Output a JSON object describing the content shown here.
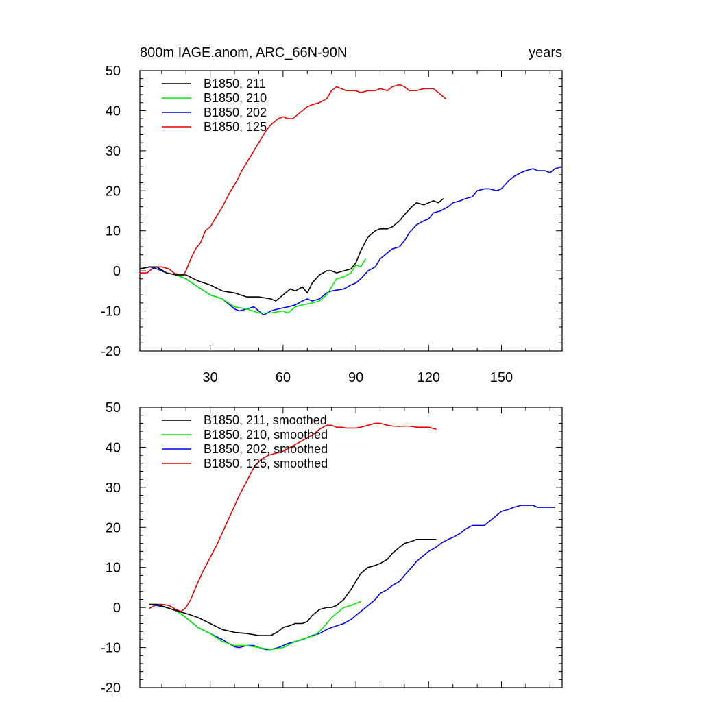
{
  "figure": {
    "title_left": "800m IAGE.anom, ARC_66N-90N",
    "title_right": "years"
  },
  "chart_data": [
    {
      "type": "line",
      "panel": "raw",
      "title": "800m IAGE.anom, ARC_66N-90N",
      "units_label": "years",
      "xlim": [
        1,
        175
      ],
      "ylim": [
        -20,
        50
      ],
      "x_ticks": [
        30,
        60,
        90,
        120,
        150
      ],
      "x_tick_labels": [
        "30",
        "60",
        "90",
        "120",
        "150"
      ],
      "y_ticks": [
        -20,
        -10,
        0,
        10,
        20,
        30,
        40,
        50
      ],
      "y_tick_labels": [
        "-20",
        "-10",
        "0",
        "10",
        "20",
        "30",
        "40",
        "50"
      ],
      "legend_position": "top-left",
      "series": [
        {
          "name": "B1850, 211",
          "color": "#000000",
          "x": [
            1,
            5,
            8,
            12,
            16,
            20,
            25,
            30,
            35,
            40,
            45,
            50,
            55,
            57,
            60,
            63,
            65,
            68,
            70,
            72,
            75,
            78,
            80,
            82,
            85,
            88,
            90,
            92,
            95,
            98,
            100,
            103,
            105,
            108,
            110,
            113,
            115,
            118,
            120,
            122,
            124,
            126
          ],
          "y": [
            0.5,
            1,
            1,
            -0.5,
            -1,
            -1,
            -2.5,
            -3.5,
            -5,
            -5.5,
            -6.5,
            -6.5,
            -7,
            -7.5,
            -6,
            -4.5,
            -5,
            -4,
            -5.5,
            -3,
            -1,
            0,
            0,
            -0.5,
            0,
            0.5,
            2,
            5,
            8.5,
            10,
            10.5,
            10.5,
            11,
            12.5,
            14,
            16,
            17,
            16.5,
            17,
            17.5,
            17,
            18
          ]
        },
        {
          "name": "B1850, 210",
          "color": "#00ee00",
          "x": [
            1,
            5,
            8,
            12,
            16,
            20,
            25,
            30,
            35,
            40,
            45,
            50,
            55,
            60,
            62,
            65,
            68,
            72,
            75,
            78,
            80,
            82,
            85,
            88,
            90,
            92,
            94
          ],
          "y": [
            0.5,
            1,
            1,
            -0.5,
            -1,
            -2,
            -4,
            -6,
            -7,
            -9,
            -9.5,
            -10.5,
            -10.5,
            -10,
            -10.5,
            -9,
            -8.5,
            -8,
            -7.5,
            -6,
            -4,
            -2,
            -1.5,
            -0.5,
            1.5,
            1,
            3
          ]
        },
        {
          "name": "B1850, 202",
          "color": "#0000ee",
          "x": [
            1,
            5,
            8,
            12,
            16,
            20,
            25,
            30,
            35,
            40,
            42,
            45,
            48,
            50,
            52,
            55,
            58,
            62,
            65,
            68,
            70,
            72,
            75,
            78,
            80,
            85,
            88,
            90,
            92,
            95,
            98,
            100,
            103,
            105,
            108,
            110,
            112,
            115,
            118,
            120,
            122,
            125,
            128,
            130,
            133,
            135,
            138,
            140,
            143,
            145,
            148,
            150,
            153,
            155,
            158,
            160,
            163,
            165,
            168,
            170,
            172,
            175
          ],
          "y": [
            0.5,
            1,
            0.5,
            -0.5,
            -1,
            -2,
            -4,
            -6,
            -7,
            -9.5,
            -10,
            -9.5,
            -9,
            -10,
            -11,
            -10,
            -9.5,
            -9,
            -8.5,
            -7.5,
            -7,
            -7.5,
            -7,
            -5.5,
            -5,
            -4.5,
            -3.5,
            -3,
            -2,
            0,
            1,
            3,
            4.5,
            5.5,
            6,
            7.5,
            9.5,
            11.5,
            12.5,
            13,
            14.5,
            15,
            16,
            17,
            17.5,
            18,
            18.5,
            20,
            20.5,
            20.5,
            20,
            20.5,
            22.5,
            23.5,
            24.5,
            25,
            25.5,
            25,
            25,
            24.5,
            25.5,
            26
          ]
        },
        {
          "name": "B1850, 125",
          "color": "#ee0000",
          "x": [
            1,
            4,
            6,
            8,
            10,
            13,
            15,
            17,
            19,
            20,
            22,
            24,
            26,
            28,
            30,
            32,
            35,
            38,
            41,
            43,
            45,
            47,
            49,
            51,
            53,
            55,
            57,
            58,
            60,
            62,
            64,
            66,
            68,
            70,
            72,
            75,
            78,
            80,
            82,
            84,
            86,
            88,
            90,
            92,
            95,
            98,
            100,
            103,
            105,
            108,
            110,
            112,
            115,
            118,
            120,
            122,
            124,
            127
          ],
          "y": [
            -0.5,
            -0.5,
            0.5,
            1,
            1,
            0.5,
            -0.5,
            -1,
            -1,
            0,
            3,
            5.5,
            7,
            10,
            11,
            13,
            16,
            19.5,
            22.5,
            25,
            27,
            29,
            31,
            33,
            35,
            36.5,
            37.5,
            38,
            38.5,
            38,
            38,
            39,
            40,
            41,
            41.5,
            42,
            43,
            45,
            46,
            45.5,
            45,
            45,
            45,
            44.5,
            45,
            45,
            45.5,
            45,
            46,
            46.5,
            46,
            45,
            45,
            45.5,
            45.5,
            45.5,
            44.5,
            43
          ]
        }
      ]
    },
    {
      "type": "line",
      "panel": "smoothed",
      "xlim": [
        1,
        175
      ],
      "ylim": [
        -20,
        50
      ],
      "y_ticks": [
        -20,
        -10,
        0,
        10,
        20,
        30,
        40,
        50
      ],
      "y_tick_labels": [
        "-20",
        "-10",
        "0",
        "10",
        "20",
        "30",
        "40",
        "50"
      ],
      "legend_position": "top-left",
      "series": [
        {
          "name": "B1850, 211, smoothed",
          "color": "#000000",
          "x": [
            5,
            8,
            12,
            16,
            20,
            25,
            30,
            35,
            40,
            45,
            50,
            55,
            58,
            60,
            63,
            65,
            68,
            70,
            72,
            75,
            78,
            80,
            82,
            85,
            88,
            90,
            92,
            95,
            98,
            100,
            103,
            105,
            108,
            110,
            113,
            115,
            118,
            120,
            123
          ],
          "y": [
            0.8,
            0.8,
            0,
            -0.8,
            -1.5,
            -2.5,
            -4,
            -5.5,
            -6.2,
            -6.5,
            -7,
            -7,
            -6,
            -5,
            -4.5,
            -4,
            -4,
            -3.5,
            -2,
            -0.5,
            0,
            0,
            0.5,
            2,
            4.5,
            6.5,
            8.5,
            10,
            10.5,
            11,
            12,
            13.5,
            15,
            16,
            16.5,
            17,
            17,
            17,
            17
          ]
        },
        {
          "name": "B1850, 210, smoothed",
          "color": "#00ee00",
          "x": [
            5,
            8,
            12,
            16,
            20,
            25,
            30,
            35,
            40,
            45,
            50,
            55,
            60,
            65,
            70,
            73,
            75,
            78,
            80,
            83,
            85,
            88,
            90,
            92
          ],
          "y": [
            0.8,
            0.8,
            0,
            -0.8,
            -2.5,
            -5,
            -6.5,
            -8.5,
            -9.5,
            -9.5,
            -10,
            -10.5,
            -10,
            -8.5,
            -7.5,
            -7,
            -6,
            -4,
            -2.5,
            -1,
            0,
            0.5,
            1,
            1.5
          ]
        },
        {
          "name": "B1850, 202, smoothed",
          "color": "#0000ee",
          "x": [
            5,
            8,
            12,
            16,
            20,
            25,
            30,
            35,
            40,
            42,
            45,
            48,
            50,
            53,
            55,
            58,
            62,
            65,
            68,
            70,
            72,
            75,
            78,
            80,
            85,
            88,
            90,
            92,
            95,
            98,
            100,
            103,
            105,
            108,
            110,
            113,
            115,
            118,
            120,
            123,
            125,
            128,
            130,
            133,
            135,
            138,
            140,
            143,
            145,
            148,
            150,
            153,
            155,
            158,
            160,
            163,
            165,
            168,
            170,
            172
          ],
          "y": [
            0.8,
            0.5,
            0,
            -0.8,
            -2.5,
            -5,
            -6.5,
            -8,
            -9.8,
            -10,
            -9.5,
            -9.5,
            -10,
            -10.5,
            -10.5,
            -10,
            -9,
            -8.5,
            -8,
            -7.5,
            -7,
            -6.5,
            -5.5,
            -5,
            -4,
            -3,
            -2,
            -1,
            0.5,
            2,
            3.5,
            4.5,
            5.5,
            6.5,
            8,
            10,
            11.5,
            13,
            14,
            15,
            16,
            17,
            17.5,
            18.5,
            19.5,
            20.5,
            20.5,
            20.5,
            21.5,
            23,
            24,
            24.5,
            25,
            25.5,
            25.5,
            25.5,
            25,
            25,
            25,
            25
          ]
        },
        {
          "name": "B1850, 125, smoothed",
          "color": "#ee0000",
          "x": [
            5,
            8,
            10,
            13,
            16,
            18,
            20,
            22,
            24,
            27,
            30,
            33,
            36,
            39,
            42,
            45,
            48,
            51,
            54,
            57,
            60,
            63,
            66,
            69,
            72,
            75,
            78,
            80,
            82,
            84,
            86,
            88,
            90,
            92,
            95,
            98,
            100,
            103,
            105,
            108,
            110,
            113,
            115,
            118,
            120,
            123
          ],
          "y": [
            -0.2,
            0.8,
            0.8,
            0.5,
            -0.5,
            -1,
            0,
            2,
            5,
            9,
            12.5,
            16,
            20,
            24,
            28,
            31.5,
            35,
            37,
            38,
            38.5,
            39,
            40,
            41,
            42,
            43,
            44.5,
            45.5,
            45.5,
            45,
            45,
            44.8,
            44.8,
            44.8,
            45,
            45.5,
            46,
            46,
            45.5,
            45.3,
            45.2,
            45.3,
            45.2,
            45,
            45,
            45,
            44.5
          ]
        }
      ]
    }
  ]
}
